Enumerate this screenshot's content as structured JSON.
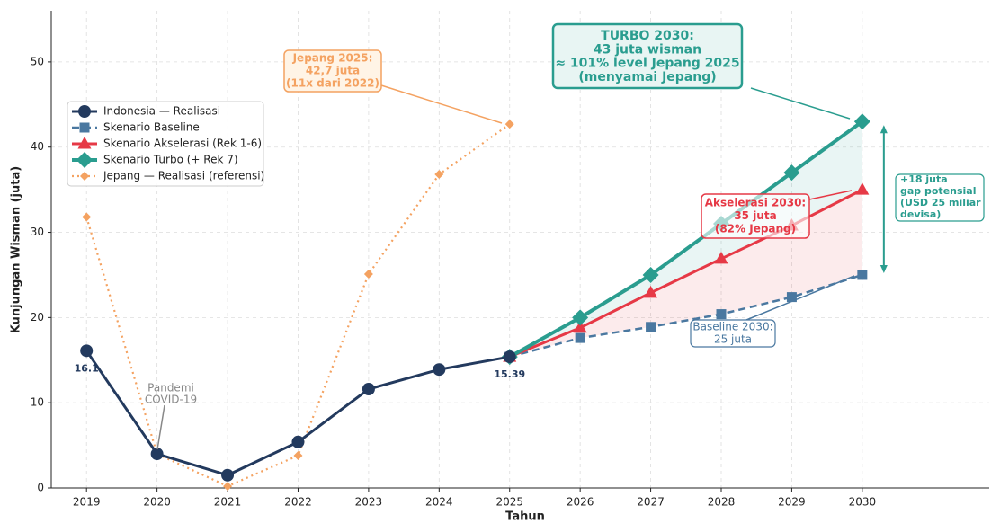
{
  "chart_data": {
    "type": "line",
    "xlabel": "Tahun",
    "ylabel": "Kunjungan Wisman (juta)",
    "x": [
      2019,
      2020,
      2021,
      2022,
      2023,
      2024,
      2025,
      2026,
      2027,
      2028,
      2029,
      2030
    ],
    "xlim": [
      2018.5,
      2031.8
    ],
    "xticks": [
      2019,
      2020,
      2021,
      2022,
      2023,
      2024,
      2025,
      2026,
      2027,
      2028,
      2029,
      2030
    ],
    "ylim": [
      0,
      56
    ],
    "yticks": [
      0,
      10,
      20,
      30,
      40,
      50
    ],
    "grid": true,
    "legend": "upper left",
    "series": [
      {
        "name": "Indonesia — Realisasi",
        "color": "#233a5e",
        "marker": "circle",
        "linestyle": "solid",
        "values": [
          16.1,
          4.0,
          1.5,
          5.4,
          11.6,
          13.9,
          15.39,
          null,
          null,
          null,
          null,
          null
        ],
        "value_labels": [
          "16.1",
          null,
          null,
          null,
          null,
          null,
          "15.39"
        ]
      },
      {
        "name": "Skenario Baseline",
        "color": "#4a78a0",
        "marker": "square",
        "linestyle": "dashed",
        "values": [
          null,
          null,
          null,
          null,
          null,
          null,
          15.39,
          17.6,
          18.9,
          20.4,
          22.4,
          25
        ]
      },
      {
        "name": "Skenario Akselerasi (Rek 1-6)",
        "color": "#e63946",
        "marker": "triangle",
        "linestyle": "solid",
        "values": [
          null,
          null,
          null,
          null,
          null,
          null,
          15.39,
          18.8,
          22.9,
          26.9,
          30.8,
          35
        ]
      },
      {
        "name": "Skenario Turbo (+ Rek 7)",
        "color": "#2a9d8f",
        "marker": "diamond",
        "linestyle": "solid",
        "values": [
          null,
          null,
          null,
          null,
          null,
          null,
          15.39,
          20,
          25,
          31,
          37,
          43
        ]
      },
      {
        "name": "Jepang — Realisasi (referensi)",
        "color": "#f4a261",
        "marker": "small-diamond",
        "linestyle": "dotted",
        "values": [
          31.8,
          4.0,
          0.2,
          3.8,
          25.1,
          36.8,
          42.7,
          null,
          null,
          null,
          null,
          null
        ]
      }
    ],
    "annotations": [
      {
        "lines": [
          "TURBO 2030:",
          "43 juta wisman",
          "≈ 101% level Jepang 2025",
          "(menyamai Jepang)"
        ],
        "color": "#2a9d8f"
      },
      {
        "lines": [
          "Jepang 2025:",
          "42,7 juta",
          "(11x dari 2022)"
        ],
        "color": "#f4a261"
      },
      {
        "lines": [
          "Akselerasi 2030:",
          "35 juta",
          "(82% Jepang)"
        ],
        "color": "#e63946"
      },
      {
        "lines": [
          "Baseline 2030:",
          "25 juta"
        ],
        "color": "#4a78a0"
      },
      {
        "lines": [
          "+18 juta",
          "gap potensial",
          "(USD 25 miliar",
          "devisa)"
        ],
        "color": "#2a9d8f"
      },
      {
        "lines": [
          "Pandemi",
          "COVID-19"
        ],
        "color": "#888888"
      }
    ]
  }
}
